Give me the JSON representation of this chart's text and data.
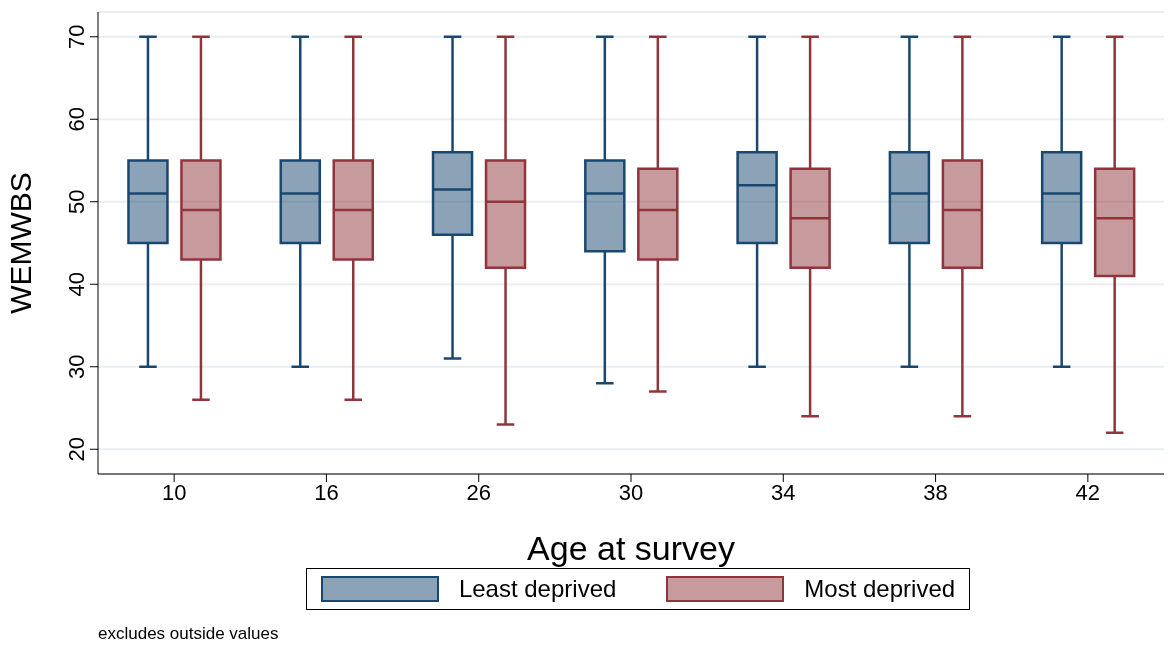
{
  "chart_data": {
    "type": "box",
    "xlabel": "Age at survey",
    "ylabel": "WEMWBS",
    "categories": [
      "10",
      "16",
      "26",
      "30",
      "34",
      "38",
      "42"
    ],
    "ylim": [
      17,
      73
    ],
    "yticks": [
      20,
      30,
      40,
      50,
      60,
      70
    ],
    "grid": "y",
    "legend": "bottom",
    "annotations": [
      "excludes outside values"
    ],
    "series": [
      {
        "name": "Least deprived",
        "color": "#1a476f",
        "boxes": [
          {
            "low": 30,
            "q1": 45,
            "median": 51,
            "q3": 55,
            "high": 70
          },
          {
            "low": 30,
            "q1": 45,
            "median": 51,
            "q3": 55,
            "high": 70
          },
          {
            "low": 31,
            "q1": 46,
            "median": 51.5,
            "q3": 56,
            "high": 70
          },
          {
            "low": 28,
            "q1": 44,
            "median": 51,
            "q3": 55,
            "high": 70
          },
          {
            "low": 30,
            "q1": 45,
            "median": 52,
            "q3": 56,
            "high": 70
          },
          {
            "low": 30,
            "q1": 45,
            "median": 51,
            "q3": 56,
            "high": 70
          },
          {
            "low": 30,
            "q1": 45,
            "median": 51,
            "q3": 56,
            "high": 70
          }
        ]
      },
      {
        "name": "Most deprived",
        "color": "#90353b",
        "boxes": [
          {
            "low": 26,
            "q1": 43,
            "median": 49,
            "q3": 55,
            "high": 70
          },
          {
            "low": 26,
            "q1": 43,
            "median": 49,
            "q3": 55,
            "high": 70
          },
          {
            "low": 23,
            "q1": 42,
            "median": 50,
            "q3": 55,
            "high": 70
          },
          {
            "low": 27,
            "q1": 43,
            "median": 49,
            "q3": 54,
            "high": 70
          },
          {
            "low": 24,
            "q1": 42,
            "median": 48,
            "q3": 54,
            "high": 70
          },
          {
            "low": 24,
            "q1": 42,
            "median": 49,
            "q3": 55,
            "high": 70
          },
          {
            "low": 22,
            "q1": 41,
            "median": 48,
            "q3": 54,
            "high": 70
          }
        ]
      }
    ]
  }
}
